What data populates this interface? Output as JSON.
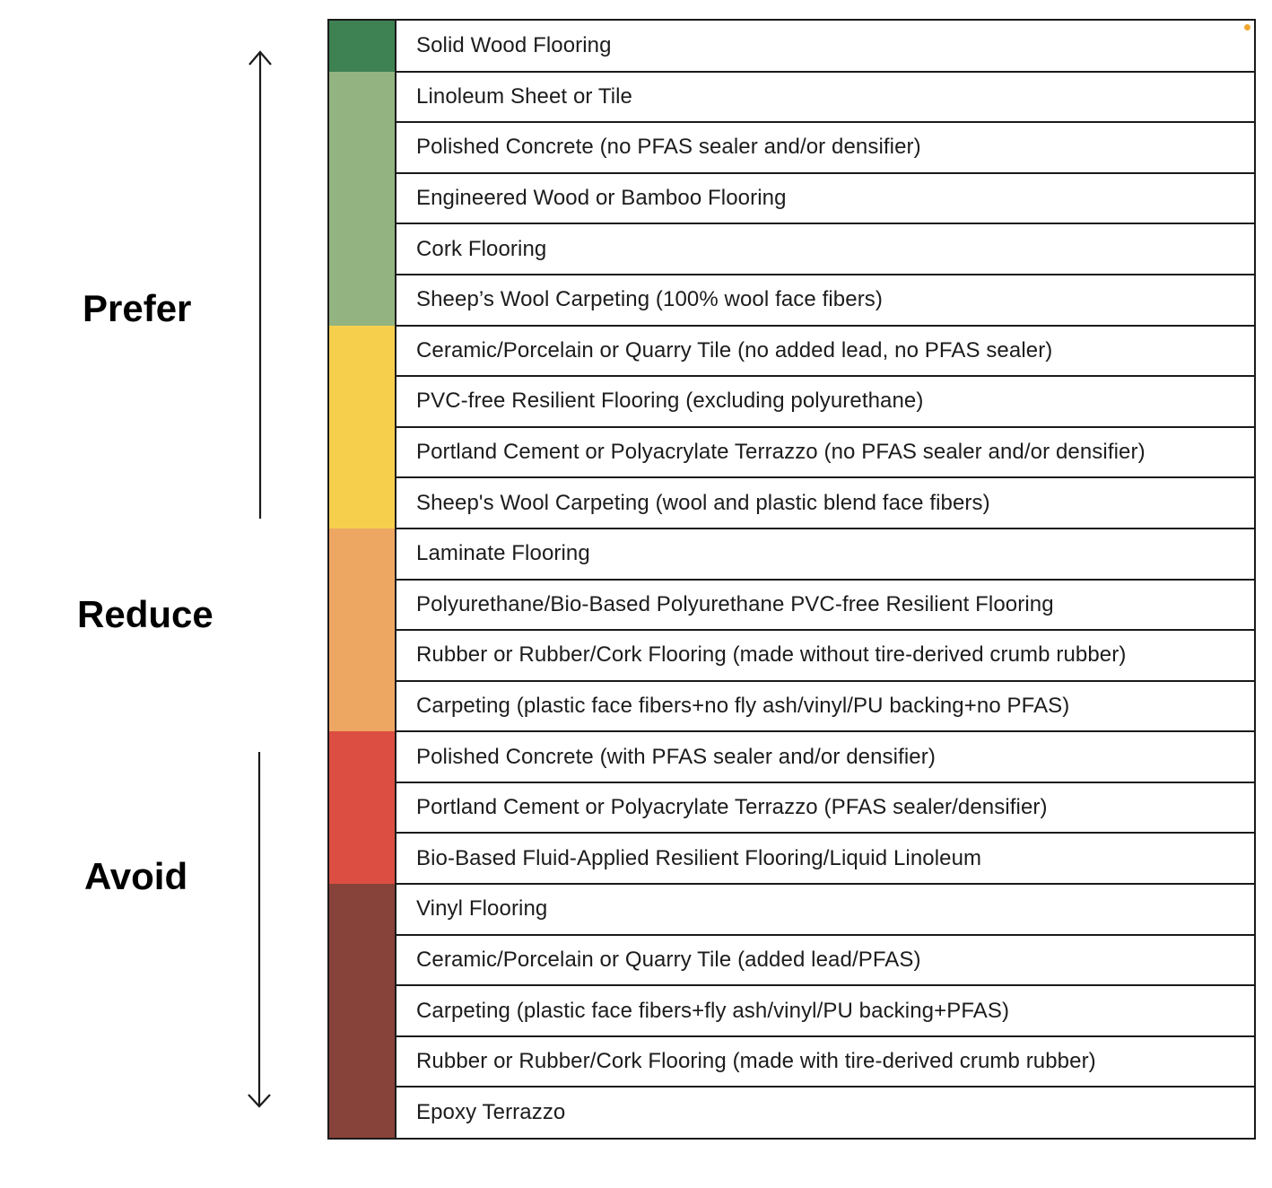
{
  "groups": {
    "prefer": "Prefer",
    "reduce": "Reduce",
    "avoid": "Avoid"
  },
  "colors": {
    "dark_green": "#3e8153",
    "light_green": "#93b381",
    "yellow": "#f6d04d",
    "orange": "#eea663",
    "red": "#dc4e41",
    "brown": "#87433a",
    "accent_dot": "#f0a830"
  },
  "color_bands": [
    {
      "color": "#3e8153",
      "row_count": 1
    },
    {
      "color": "#93b381",
      "row_count": 5
    },
    {
      "color": "#f6d04d",
      "row_count": 4
    },
    {
      "color": "#eea663",
      "row_count": 4
    },
    {
      "color": "#dc4e41",
      "row_count": 3
    },
    {
      "color": "#87433a",
      "row_count": 5
    }
  ],
  "rows": [
    "Solid Wood Flooring",
    "Linoleum Sheet or Tile",
    "Polished Concrete (no PFAS sealer and/or densifier)",
    "Engineered Wood or Bamboo Flooring",
    "Cork Flooring",
    "Sheep’s Wool Carpeting (100% wool face fibers)",
    "Ceramic/Porcelain or Quarry Tile (no added lead, no PFAS sealer)",
    "PVC-free Resilient Flooring (excluding polyurethane)",
    "Portland Cement or Polyacrylate Terrazzo (no PFAS sealer and/or densifier)",
    "Sheep's Wool Carpeting (wool and plastic blend face fibers)",
    "Laminate Flooring",
    "Polyurethane/Bio-Based Polyurethane PVC-free Resilient Flooring",
    "Rubber or Rubber/Cork Flooring (made without tire-derived crumb rubber)",
    "Carpeting (plastic face fibers+no fly ash/vinyl/PU backing+no PFAS)",
    "Polished Concrete (with PFAS sealer and/or densifier)",
    "Portland Cement or Polyacrylate Terrazzo (PFAS sealer/densifier)",
    "Bio-Based Fluid-Applied Resilient Flooring/Liquid Linoleum",
    "Vinyl Flooring",
    "Ceramic/Porcelain or Quarry Tile (added lead/PFAS)",
    "Carpeting (plastic face fibers+fly ash/vinyl/PU backing+PFAS)",
    "Rubber or Rubber/Cork Flooring (made with tire-derived crumb rubber)",
    "Epoxy Terrazzo"
  ]
}
